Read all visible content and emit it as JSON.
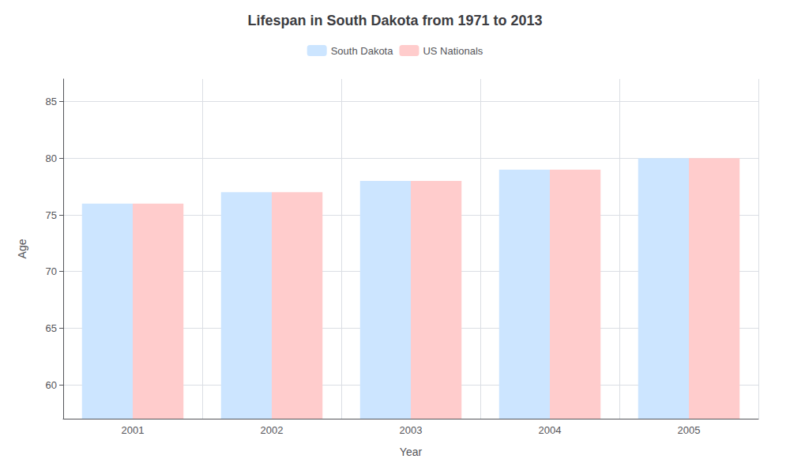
{
  "chart_data": {
    "type": "bar",
    "title": "Lifespan in South Dakota from 1971 to 2013",
    "xlabel": "Year",
    "ylabel": "Age",
    "categories": [
      "2001",
      "2002",
      "2003",
      "2004",
      "2005"
    ],
    "series": [
      {
        "name": "South Dakota",
        "color": "#cce5ff",
        "values": [
          76,
          77,
          78,
          79,
          80
        ]
      },
      {
        "name": "US Nationals",
        "color": "#ffcccc",
        "values": [
          76,
          77,
          78,
          79,
          80
        ]
      }
    ],
    "ylim": [
      57,
      87
    ],
    "yticks": [
      60,
      65,
      70,
      75,
      80,
      85
    ],
    "grid": true,
    "legend": "top"
  }
}
